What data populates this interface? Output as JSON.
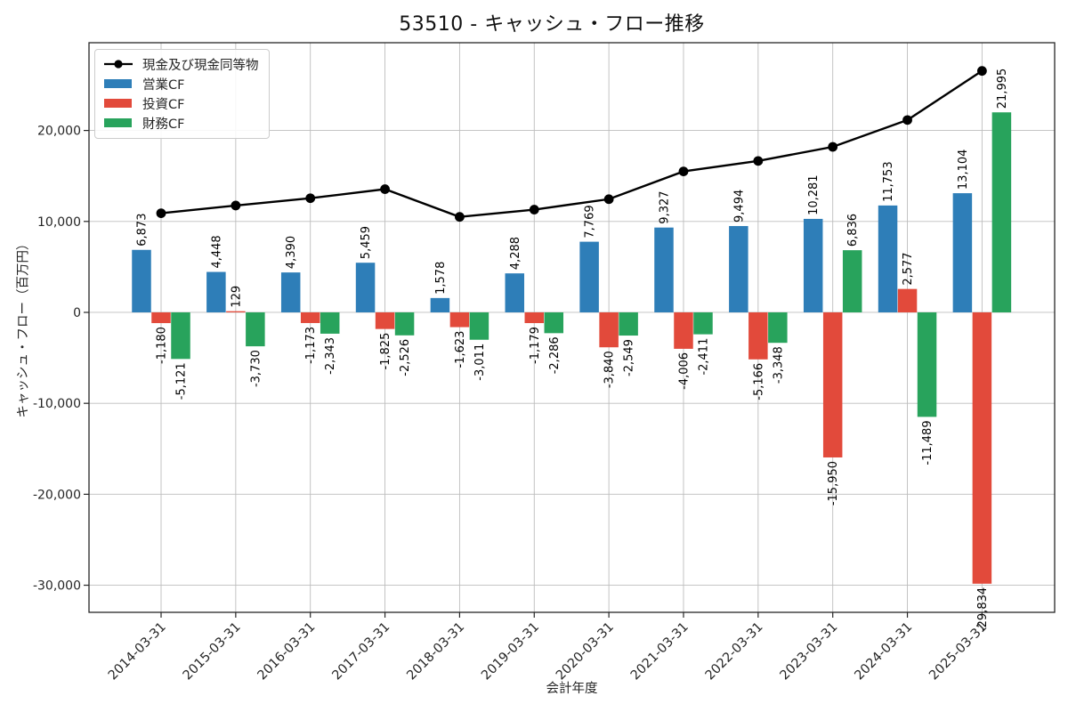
{
  "chart_data": {
    "type": "bar+line",
    "title": "53510 - キャッシュ・フロー推移",
    "xlabel": "会計年度",
    "ylabel": "キャッシュ・フロー（百万円）",
    "categories": [
      "2014-03-31",
      "2015-03-31",
      "2016-03-31",
      "2017-03-31",
      "2018-03-31",
      "2019-03-31",
      "2020-03-31",
      "2021-03-31",
      "2022-03-31",
      "2023-03-31",
      "2024-03-31",
      "2025-03-31"
    ],
    "series": [
      {
        "name": "現金及び現金同等物",
        "type": "line",
        "color": "#000000",
        "values": [
          10900,
          11750,
          12550,
          13550,
          10500,
          11300,
          12450,
          15500,
          16650,
          18200,
          21150,
          26550
        ]
      },
      {
        "name": "営業CF",
        "type": "bar",
        "color": "#2e7eb8",
        "values": [
          6873,
          4448,
          4390,
          5459,
          1578,
          4288,
          7769,
          9327,
          9494,
          10281,
          11753,
          13104
        ]
      },
      {
        "name": "投資CF",
        "type": "bar",
        "color": "#e24a3b",
        "values": [
          -1180,
          129,
          -1173,
          -1825,
          -1623,
          -1179,
          -3840,
          -4006,
          -5166,
          -15950,
          2577,
          -29834
        ]
      },
      {
        "name": "財務CF",
        "type": "bar",
        "color": "#28a35c",
        "values": [
          -5121,
          -3730,
          -2343,
          -2526,
          -3011,
          -2286,
          -2549,
          -2411,
          -3348,
          6836,
          -11489,
          21995
        ]
      }
    ],
    "bar_value_labels": true,
    "yticks": [
      -30000,
      -20000,
      -10000,
      0,
      10000,
      20000
    ],
    "ylim": [
      -32980,
      29650
    ],
    "grid": true,
    "legend_position": "upper left",
    "colors": {
      "grid": "#bdbdbd",
      "axis": "#262626",
      "text": "#262626",
      "label": "#000000"
    }
  }
}
